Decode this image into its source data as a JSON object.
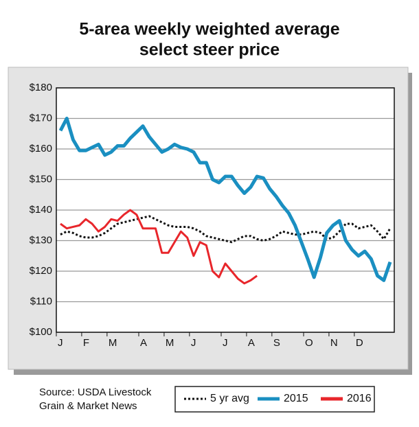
{
  "chart_data": {
    "type": "line",
    "title": [
      "5-area weekly weighted average",
      "select steer price"
    ],
    "source": [
      "Source: USDA Livestock",
      "Grain & Market News"
    ],
    "categories": [
      "J",
      null,
      null,
      null,
      "F",
      null,
      null,
      null,
      "M",
      null,
      null,
      null,
      null,
      "A",
      null,
      null,
      null,
      "M",
      null,
      null,
      null,
      "J",
      null,
      null,
      null,
      null,
      "J",
      null,
      null,
      null,
      "A",
      null,
      null,
      null,
      "S",
      null,
      null,
      null,
      null,
      "O",
      null,
      null,
      null,
      "N",
      null,
      null,
      null,
      "D",
      null,
      null,
      null,
      null,
      null
    ],
    "series": [
      {
        "name": "5 yr avg",
        "color": "#111111",
        "dashed": true,
        "values": [
          132,
          133,
          132.5,
          131.5,
          131,
          131,
          131.5,
          132.5,
          134,
          135.5,
          136,
          136.5,
          137,
          137.5,
          138,
          137,
          136,
          135,
          134.5,
          134.5,
          134.5,
          134,
          133,
          131.5,
          131,
          130.5,
          130,
          129.5,
          130.5,
          131.5,
          131.5,
          130.5,
          130,
          130.5,
          131.5,
          133,
          132.5,
          132,
          132,
          132.5,
          133,
          132.5,
          130.5,
          131,
          133,
          135.5,
          135.5,
          134,
          134.5,
          135,
          133,
          130.5,
          134
        ]
      },
      {
        "name": "2015",
        "color": "#1a8fc1",
        "values": [
          166,
          170,
          163,
          159.5,
          159.5,
          160.5,
          161.5,
          158,
          159,
          161,
          161,
          163.5,
          165.5,
          167.5,
          164,
          161.5,
          159,
          160,
          161.5,
          160.5,
          160,
          159,
          155.5,
          155.5,
          150,
          149,
          151,
          151,
          148,
          145.5,
          147.5,
          151,
          150.5,
          147,
          144.5,
          141.5,
          139,
          135,
          129.5,
          124,
          118,
          124.5,
          132.5,
          135,
          136.5,
          130,
          127,
          125,
          126.5,
          124,
          118.5,
          117,
          123
        ]
      },
      {
        "name": "2016",
        "color": "#e8262b",
        "values": [
          135.5,
          134,
          134.5,
          135,
          137,
          135.5,
          133,
          134.5,
          137,
          136.5,
          138.5,
          140,
          138.5,
          134,
          134,
          134,
          126,
          126,
          129.5,
          133,
          131,
          125,
          129.5,
          128.5,
          120,
          118,
          122.5,
          120,
          117.5,
          116,
          117,
          118.5,
          null,
          null,
          null,
          null,
          null,
          null,
          null,
          null,
          null,
          null,
          null,
          null,
          null,
          null,
          null,
          null,
          null,
          null,
          null,
          null,
          null
        ]
      }
    ],
    "ylim": [
      100,
      180
    ],
    "yticks": [
      {
        "value": 100,
        "label": "$100"
      },
      {
        "value": 110,
        "label": "$110"
      },
      {
        "value": 120,
        "label": "$120"
      },
      {
        "value": 130,
        "label": "$130"
      },
      {
        "value": 140,
        "label": "$140"
      },
      {
        "value": 150,
        "label": "$150"
      },
      {
        "value": 160,
        "label": "$160"
      },
      {
        "value": 170,
        "label": "$170"
      },
      {
        "value": 180,
        "label": "$180"
      }
    ],
    "grid": true
  }
}
